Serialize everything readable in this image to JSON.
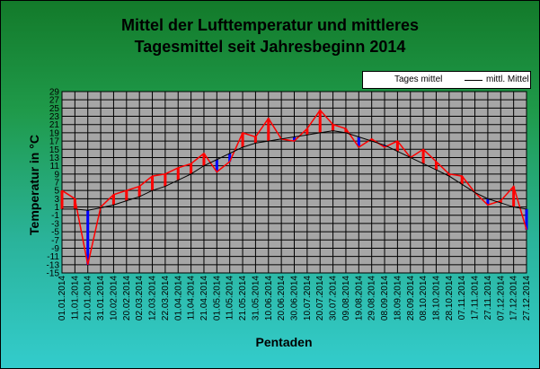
{
  "chart_data": {
    "type": "line",
    "title": [
      "Mittel der Lufttemperatur und mittleres",
      "Tagesmittel seit Jahresbeginn 2014"
    ],
    "ylabel": "Temperatur in °C",
    "xlabel": "Pentaden",
    "ylim": [
      -15,
      29
    ],
    "yticks": [
      29,
      27,
      25,
      23,
      21,
      19,
      17,
      15,
      13,
      11,
      9,
      7,
      5,
      3,
      1,
      -1,
      -3,
      -5,
      -7,
      -9,
      -11,
      -13,
      -15
    ],
    "x_tick_labels": [
      "01.01.2014",
      "11.01.2014",
      "21.01.2014",
      "31.01.2014",
      "10.02.2014",
      "20.02.2014",
      "02.03.2014",
      "12.03.2014",
      "22.03.2014",
      "01.04.2014",
      "11.04.2014",
      "21.04.2014",
      "01.05.2014",
      "11.05.2014",
      "21.05.2014",
      "31.05.2014",
      "10.06.2014",
      "20.06.2014",
      "30.06.2014",
      "10.07.2014",
      "20.07.2014",
      "30.07.2014",
      "09.08.2014",
      "19.08.2014",
      "29.08.2014",
      "08.09.2014",
      "18.09.2014",
      "28.09.2014",
      "08.10.2014",
      "18.10.2014",
      "28.10.2014",
      "07.11.2014",
      "17.11.2014",
      "27.11.2014",
      "07.12.2014",
      "17.12.2014",
      "27.12.2014"
    ],
    "grid": true,
    "legend_position": "top-right",
    "background": "#a6a6a6",
    "series": [
      {
        "name": "mittl. Mittel",
        "color": "#000000",
        "x": [
          "01.01.2014",
          "11.01.2014",
          "21.01.2014",
          "31.01.2014",
          "10.02.2014",
          "20.02.2014",
          "02.03.2014",
          "12.03.2014",
          "22.03.2014",
          "01.04.2014",
          "11.04.2014",
          "21.04.2014",
          "01.05.2014",
          "11.05.2014",
          "21.05.2014",
          "31.05.2014",
          "10.06.2014",
          "20.06.2014",
          "30.06.2014",
          "10.07.2014",
          "20.07.2014",
          "30.07.2014",
          "09.08.2014",
          "19.08.2014",
          "29.08.2014",
          "08.09.2014",
          "18.09.2014",
          "28.09.2014",
          "08.10.2014",
          "18.10.2014",
          "28.10.2014",
          "07.11.2014",
          "17.11.2014",
          "27.11.2014",
          "07.12.2014",
          "17.12.2014",
          "27.12.2014"
        ],
        "values": [
          0.5,
          0.5,
          0.2,
          0.8,
          1.5,
          2.5,
          3.5,
          5.0,
          6.0,
          7.5,
          9.0,
          11.0,
          12.5,
          14.0,
          15.5,
          16.5,
          17.0,
          17.5,
          18.0,
          18.5,
          19.0,
          19.5,
          19.0,
          18.0,
          17.0,
          16.0,
          14.5,
          13.0,
          11.5,
          10.0,
          8.5,
          6.5,
          4.5,
          3.0,
          2.0,
          1.0,
          0.5
        ]
      },
      {
        "name": "Tages mittel",
        "positive_color": "#ff0000",
        "negative_color": "#0000ff",
        "x": [
          "01.01.2014",
          "11.01.2014",
          "21.01.2014",
          "31.01.2014",
          "10.02.2014",
          "20.02.2014",
          "02.03.2014",
          "12.03.2014",
          "22.03.2014",
          "01.04.2014",
          "11.04.2014",
          "21.04.2014",
          "01.05.2014",
          "11.05.2014",
          "21.05.2014",
          "31.05.2014",
          "10.06.2014",
          "20.06.2014",
          "30.06.2014",
          "10.07.2014",
          "20.07.2014",
          "30.07.2014",
          "09.08.2014",
          "19.08.2014",
          "29.08.2014",
          "08.09.2014",
          "18.09.2014",
          "28.09.2014",
          "08.10.2014",
          "18.10.2014",
          "28.10.2014",
          "07.11.2014",
          "17.11.2014",
          "27.11.2014",
          "07.12.2014",
          "17.12.2014",
          "27.12.2014"
        ],
        "values": [
          5.0,
          3.0,
          -13.0,
          1.0,
          4.0,
          5.0,
          6.0,
          8.5,
          9.0,
          10.5,
          11.5,
          14.0,
          9.5,
          12.0,
          19.0,
          18.0,
          22.5,
          17.5,
          17.0,
          20.0,
          24.5,
          21.0,
          20.0,
          15.5,
          17.5,
          15.5,
          17.0,
          13.0,
          15.0,
          12.0,
          9.0,
          8.5,
          4.5,
          1.5,
          2.5,
          6.0,
          -4.5
        ]
      }
    ]
  }
}
